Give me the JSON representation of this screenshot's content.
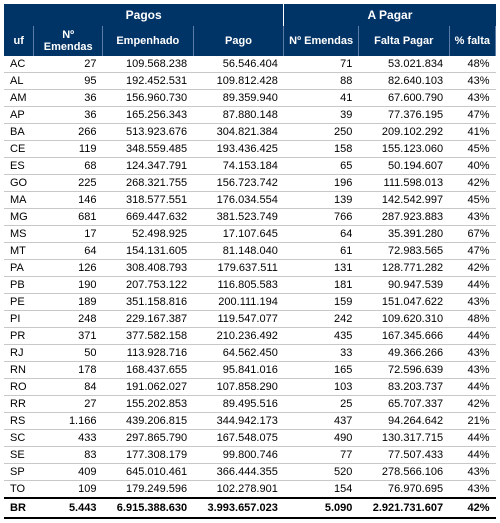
{
  "headers": {
    "group1": "Pagos",
    "group2": "A Pagar",
    "uf": "uf",
    "n_emendas_1": "Nº Emendas",
    "empenhado": "Empenhado",
    "pago": "Pago",
    "n_emendas_2": "Nº Emendas",
    "falta_pagar": "Falta Pagar",
    "pct_falta": "% falta"
  },
  "colors": {
    "header_bg": "#003366",
    "header_fg": "#ffffff",
    "row_border": "#c8c8c8"
  },
  "rows": [
    {
      "uf": "AC",
      "ne1": "27",
      "emp": "109.568.238",
      "pago": "56.546.404",
      "ne2": "71",
      "falta": "53.021.834",
      "pct": "48%"
    },
    {
      "uf": "AL",
      "ne1": "95",
      "emp": "192.452.531",
      "pago": "109.812.428",
      "ne2": "88",
      "falta": "82.640.103",
      "pct": "43%"
    },
    {
      "uf": "AM",
      "ne1": "36",
      "emp": "156.960.730",
      "pago": "89.359.940",
      "ne2": "41",
      "falta": "67.600.790",
      "pct": "43%"
    },
    {
      "uf": "AP",
      "ne1": "36",
      "emp": "165.256.343",
      "pago": "87.880.148",
      "ne2": "39",
      "falta": "77.376.195",
      "pct": "47%"
    },
    {
      "uf": "BA",
      "ne1": "266",
      "emp": "513.923.676",
      "pago": "304.821.384",
      "ne2": "250",
      "falta": "209.102.292",
      "pct": "41%"
    },
    {
      "uf": "CE",
      "ne1": "119",
      "emp": "348.559.485",
      "pago": "193.436.425",
      "ne2": "158",
      "falta": "155.123.060",
      "pct": "45%"
    },
    {
      "uf": "ES",
      "ne1": "68",
      "emp": "124.347.791",
      "pago": "74.153.184",
      "ne2": "65",
      "falta": "50.194.607",
      "pct": "40%"
    },
    {
      "uf": "GO",
      "ne1": "225",
      "emp": "268.321.755",
      "pago": "156.723.742",
      "ne2": "196",
      "falta": "111.598.013",
      "pct": "42%"
    },
    {
      "uf": "MA",
      "ne1": "146",
      "emp": "318.577.551",
      "pago": "176.034.554",
      "ne2": "139",
      "falta": "142.542.997",
      "pct": "45%"
    },
    {
      "uf": "MG",
      "ne1": "681",
      "emp": "669.447.632",
      "pago": "381.523.749",
      "ne2": "766",
      "falta": "287.923.883",
      "pct": "43%"
    },
    {
      "uf": "MS",
      "ne1": "17",
      "emp": "52.498.925",
      "pago": "17.107.645",
      "ne2": "64",
      "falta": "35.391.280",
      "pct": "67%"
    },
    {
      "uf": "MT",
      "ne1": "64",
      "emp": "154.131.605",
      "pago": "81.148.040",
      "ne2": "61",
      "falta": "72.983.565",
      "pct": "47%"
    },
    {
      "uf": "PA",
      "ne1": "126",
      "emp": "308.408.793",
      "pago": "179.637.511",
      "ne2": "131",
      "falta": "128.771.282",
      "pct": "42%"
    },
    {
      "uf": "PB",
      "ne1": "190",
      "emp": "207.753.122",
      "pago": "116.805.583",
      "ne2": "181",
      "falta": "90.947.539",
      "pct": "44%"
    },
    {
      "uf": "PE",
      "ne1": "189",
      "emp": "351.158.816",
      "pago": "200.111.194",
      "ne2": "159",
      "falta": "151.047.622",
      "pct": "43%"
    },
    {
      "uf": "PI",
      "ne1": "248",
      "emp": "229.167.387",
      "pago": "119.547.077",
      "ne2": "242",
      "falta": "109.620.310",
      "pct": "48%"
    },
    {
      "uf": "PR",
      "ne1": "371",
      "emp": "377.582.158",
      "pago": "210.236.492",
      "ne2": "435",
      "falta": "167.345.666",
      "pct": "44%"
    },
    {
      "uf": "RJ",
      "ne1": "50",
      "emp": "113.928.716",
      "pago": "64.562.450",
      "ne2": "33",
      "falta": "49.366.266",
      "pct": "43%"
    },
    {
      "uf": "RN",
      "ne1": "178",
      "emp": "168.437.655",
      "pago": "95.841.016",
      "ne2": "165",
      "falta": "72.596.639",
      "pct": "43%"
    },
    {
      "uf": "RO",
      "ne1": "84",
      "emp": "191.062.027",
      "pago": "107.858.290",
      "ne2": "103",
      "falta": "83.203.737",
      "pct": "44%"
    },
    {
      "uf": "RR",
      "ne1": "27",
      "emp": "155.202.853",
      "pago": "89.495.516",
      "ne2": "25",
      "falta": "65.707.337",
      "pct": "42%"
    },
    {
      "uf": "RS",
      "ne1": "1.166",
      "emp": "439.206.815",
      "pago": "344.942.173",
      "ne2": "437",
      "falta": "94.264.642",
      "pct": "21%"
    },
    {
      "uf": "SC",
      "ne1": "433",
      "emp": "297.865.790",
      "pago": "167.548.075",
      "ne2": "490",
      "falta": "130.317.715",
      "pct": "44%"
    },
    {
      "uf": "SE",
      "ne1": "83",
      "emp": "177.308.179",
      "pago": "99.800.746",
      "ne2": "77",
      "falta": "77.507.433",
      "pct": "44%"
    },
    {
      "uf": "SP",
      "ne1": "409",
      "emp": "645.010.461",
      "pago": "366.444.355",
      "ne2": "520",
      "falta": "278.566.106",
      "pct": "43%"
    },
    {
      "uf": "TO",
      "ne1": "109",
      "emp": "179.249.596",
      "pago": "102.278.901",
      "ne2": "154",
      "falta": "76.970.695",
      "pct": "43%"
    }
  ],
  "total": {
    "uf": "BR",
    "ne1": "5.443",
    "emp": "6.915.388.630",
    "pago": "3.993.657.023",
    "ne2": "5.090",
    "falta": "2.921.731.607",
    "pct": "42%"
  }
}
